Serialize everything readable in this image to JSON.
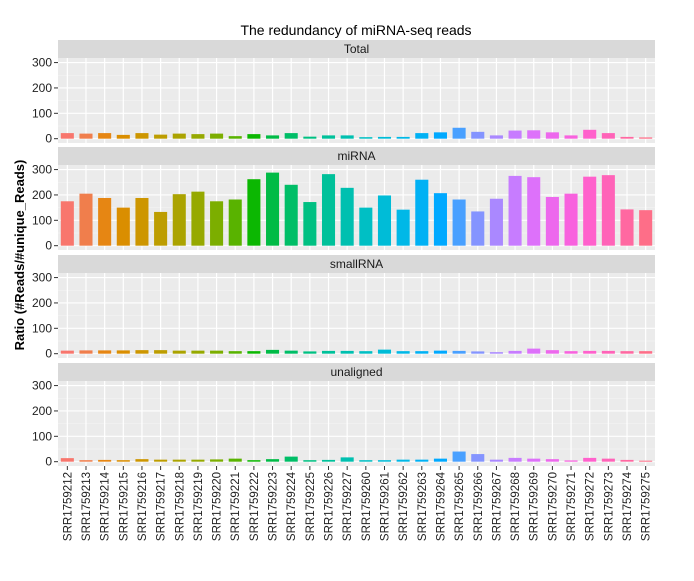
{
  "chart_data": {
    "type": "bar",
    "title": "The redundancy of miRNA-seq reads",
    "xlabel": "",
    "ylabel": "Ratio (#Reads/#unique_Reads)",
    "ylim": [
      0,
      300
    ],
    "yticks": [
      "0",
      "100",
      "200",
      "300"
    ],
    "grid": true,
    "legend": "none",
    "categories": [
      "SRR1759212",
      "SRR1759213",
      "SRR1759214",
      "SRR1759215",
      "SRR1759216",
      "SRR1759217",
      "SRR1759218",
      "SRR1759219",
      "SRR1759220",
      "SRR1759221",
      "SRR1759222",
      "SRR1759223",
      "SRR1759224",
      "SRR1759225",
      "SRR1759226",
      "SRR1759227",
      "SRR1759260",
      "SRR1759261",
      "SRR1759262",
      "SRR1759263",
      "SRR1759264",
      "SRR1759265",
      "SRR1759266",
      "SRR1759267",
      "SRR1759268",
      "SRR1759269",
      "SRR1759270",
      "SRR1759271",
      "SRR1759272",
      "SRR1759273",
      "SRR1759274",
      "SRR1759275"
    ],
    "facets": [
      {
        "name": "Total",
        "values": [
          22,
          20,
          22,
          15,
          22,
          16,
          20,
          18,
          20,
          10,
          18,
          13,
          22,
          8,
          13,
          13,
          6,
          7,
          7,
          22,
          25,
          43,
          27,
          13,
          32,
          33,
          25,
          13,
          35,
          22,
          7,
          5
        ]
      },
      {
        "name": "miRNA",
        "values": [
          175,
          205,
          188,
          150,
          188,
          133,
          203,
          213,
          175,
          182,
          262,
          288,
          240,
          172,
          282,
          228,
          150,
          198,
          142,
          260,
          207,
          182,
          135,
          185,
          275,
          270,
          192,
          205,
          272,
          278,
          143,
          140
        ]
      },
      {
        "name": "smallRNA",
        "values": [
          12,
          13,
          13,
          13,
          14,
          14,
          12,
          12,
          12,
          10,
          10,
          15,
          12,
          9,
          11,
          11,
          10,
          16,
          10,
          10,
          12,
          11,
          9,
          6,
          11,
          20,
          14,
          10,
          11,
          11,
          10,
          10
        ]
      },
      {
        "name": "unaligned",
        "values": [
          14,
          6,
          7,
          6,
          10,
          8,
          8,
          8,
          9,
          12,
          6,
          10,
          20,
          6,
          7,
          17,
          6,
          6,
          8,
          8,
          12,
          40,
          30,
          8,
          15,
          12,
          10,
          5,
          15,
          12,
          7,
          4
        ]
      }
    ],
    "colors": {
      "panel_bg": "#EBEBEB",
      "strip_bg": "#D9D9D9",
      "grid": "#FFFFFF"
    }
  }
}
